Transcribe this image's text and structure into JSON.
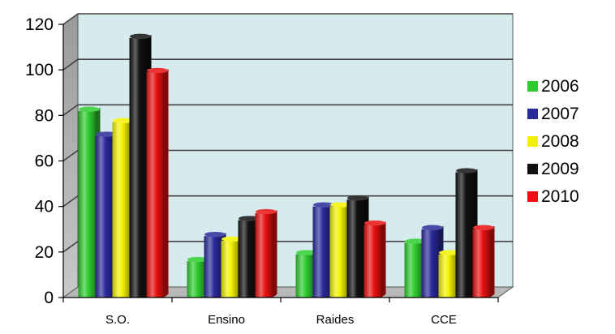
{
  "chart_data": {
    "type": "bar",
    "title": "",
    "xlabel": "",
    "ylabel": "",
    "categories": [
      "S.O.",
      "Ensino",
      "Raides",
      "CCE"
    ],
    "series": [
      {
        "name": "2006",
        "values": [
          82,
          16,
          19,
          24
        ],
        "color": "#2ecc2e"
      },
      {
        "name": "2007",
        "values": [
          71,
          27,
          40,
          30
        ],
        "color": "#2a2a9a"
      },
      {
        "name": "2008",
        "values": [
          77,
          25,
          40,
          19
        ],
        "color": "#f2f200"
      },
      {
        "name": "2009",
        "values": [
          114,
          34,
          43,
          55
        ],
        "color": "#111111"
      },
      {
        "name": "2010",
        "values": [
          99,
          37,
          32,
          30
        ],
        "color": "#e81010"
      }
    ],
    "yticks": [
      "0",
      "20",
      "40",
      "60",
      "80",
      "100",
      "120"
    ],
    "ylim": [
      0,
      120
    ],
    "grid": true,
    "legend_position": "right",
    "style": "3d-cylinder-bars",
    "plot_background": "#d5ebed"
  }
}
